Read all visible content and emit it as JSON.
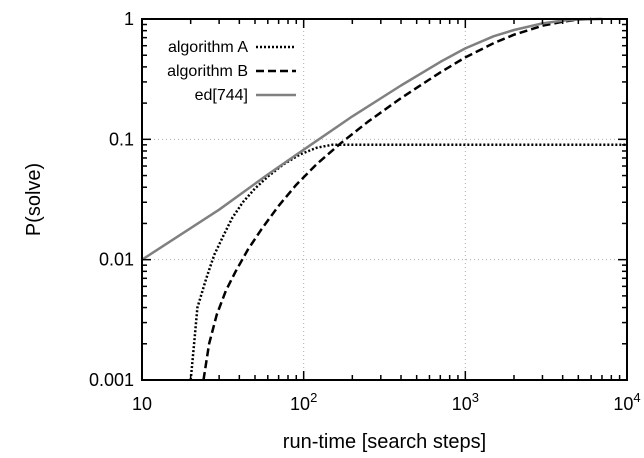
{
  "chart_data": {
    "type": "line",
    "title": "",
    "xlabel": "run-time [search steps]",
    "ylabel": "P(solve)",
    "xscale": "log",
    "yscale": "log",
    "xlim": [
      10,
      10000
    ],
    "ylim": [
      0.001,
      1
    ],
    "grid": true,
    "legend_position": "top-left",
    "x_ticks": [
      {
        "value": 10,
        "base": "10",
        "exp": ""
      },
      {
        "value": 100,
        "base": "10",
        "exp": "2"
      },
      {
        "value": 1000,
        "base": "10",
        "exp": "3"
      },
      {
        "value": 10000,
        "base": "10",
        "exp": "4"
      }
    ],
    "y_ticks": [
      {
        "value": 0.001,
        "label": "0.001"
      },
      {
        "value": 0.01,
        "label": "0.01"
      },
      {
        "value": 0.1,
        "label": "0.1"
      },
      {
        "value": 1,
        "label": "1"
      }
    ],
    "series": [
      {
        "name": "algorithm A",
        "style": "dotted",
        "color": "#000000",
        "points": [
          [
            20,
            0.001
          ],
          [
            21,
            0.002
          ],
          [
            22,
            0.004
          ],
          [
            25,
            0.007
          ],
          [
            28,
            0.011
          ],
          [
            32,
            0.016
          ],
          [
            36,
            0.022
          ],
          [
            42,
            0.03
          ],
          [
            50,
            0.039
          ],
          [
            60,
            0.049
          ],
          [
            75,
            0.062
          ],
          [
            95,
            0.075
          ],
          [
            120,
            0.085
          ],
          [
            150,
            0.09
          ],
          [
            200,
            0.09
          ],
          [
            500,
            0.09
          ],
          [
            1000,
            0.09
          ],
          [
            3000,
            0.09
          ],
          [
            10000,
            0.09
          ]
        ]
      },
      {
        "name": "algorithm B",
        "style": "dashed",
        "color": "#000000",
        "points": [
          [
            24,
            0.001
          ],
          [
            26,
            0.002
          ],
          [
            29,
            0.0035
          ],
          [
            33,
            0.0055
          ],
          [
            38,
            0.008
          ],
          [
            45,
            0.012
          ],
          [
            55,
            0.018
          ],
          [
            70,
            0.028
          ],
          [
            90,
            0.042
          ],
          [
            120,
            0.062
          ],
          [
            170,
            0.093
          ],
          [
            250,
            0.14
          ],
          [
            400,
            0.22
          ],
          [
            700,
            0.36
          ],
          [
            1000,
            0.48
          ],
          [
            1500,
            0.63
          ],
          [
            2000,
            0.74
          ],
          [
            3000,
            0.88
          ],
          [
            4000,
            0.95
          ],
          [
            5000,
            0.99
          ],
          [
            6000,
            1.0
          ]
        ]
      },
      {
        "name": "ed[744]",
        "style": "solid",
        "color": "#808080",
        "points": [
          [
            10,
            0.01
          ],
          [
            30,
            0.026
          ],
          [
            60,
            0.051
          ],
          [
            100,
            0.082
          ],
          [
            200,
            0.155
          ],
          [
            400,
            0.28
          ],
          [
            700,
            0.44
          ],
          [
            1000,
            0.57
          ],
          [
            1500,
            0.72
          ],
          [
            2000,
            0.81
          ],
          [
            3000,
            0.92
          ],
          [
            4000,
            0.97
          ],
          [
            5000,
            0.99
          ],
          [
            7000,
            1.0
          ]
        ]
      }
    ]
  }
}
